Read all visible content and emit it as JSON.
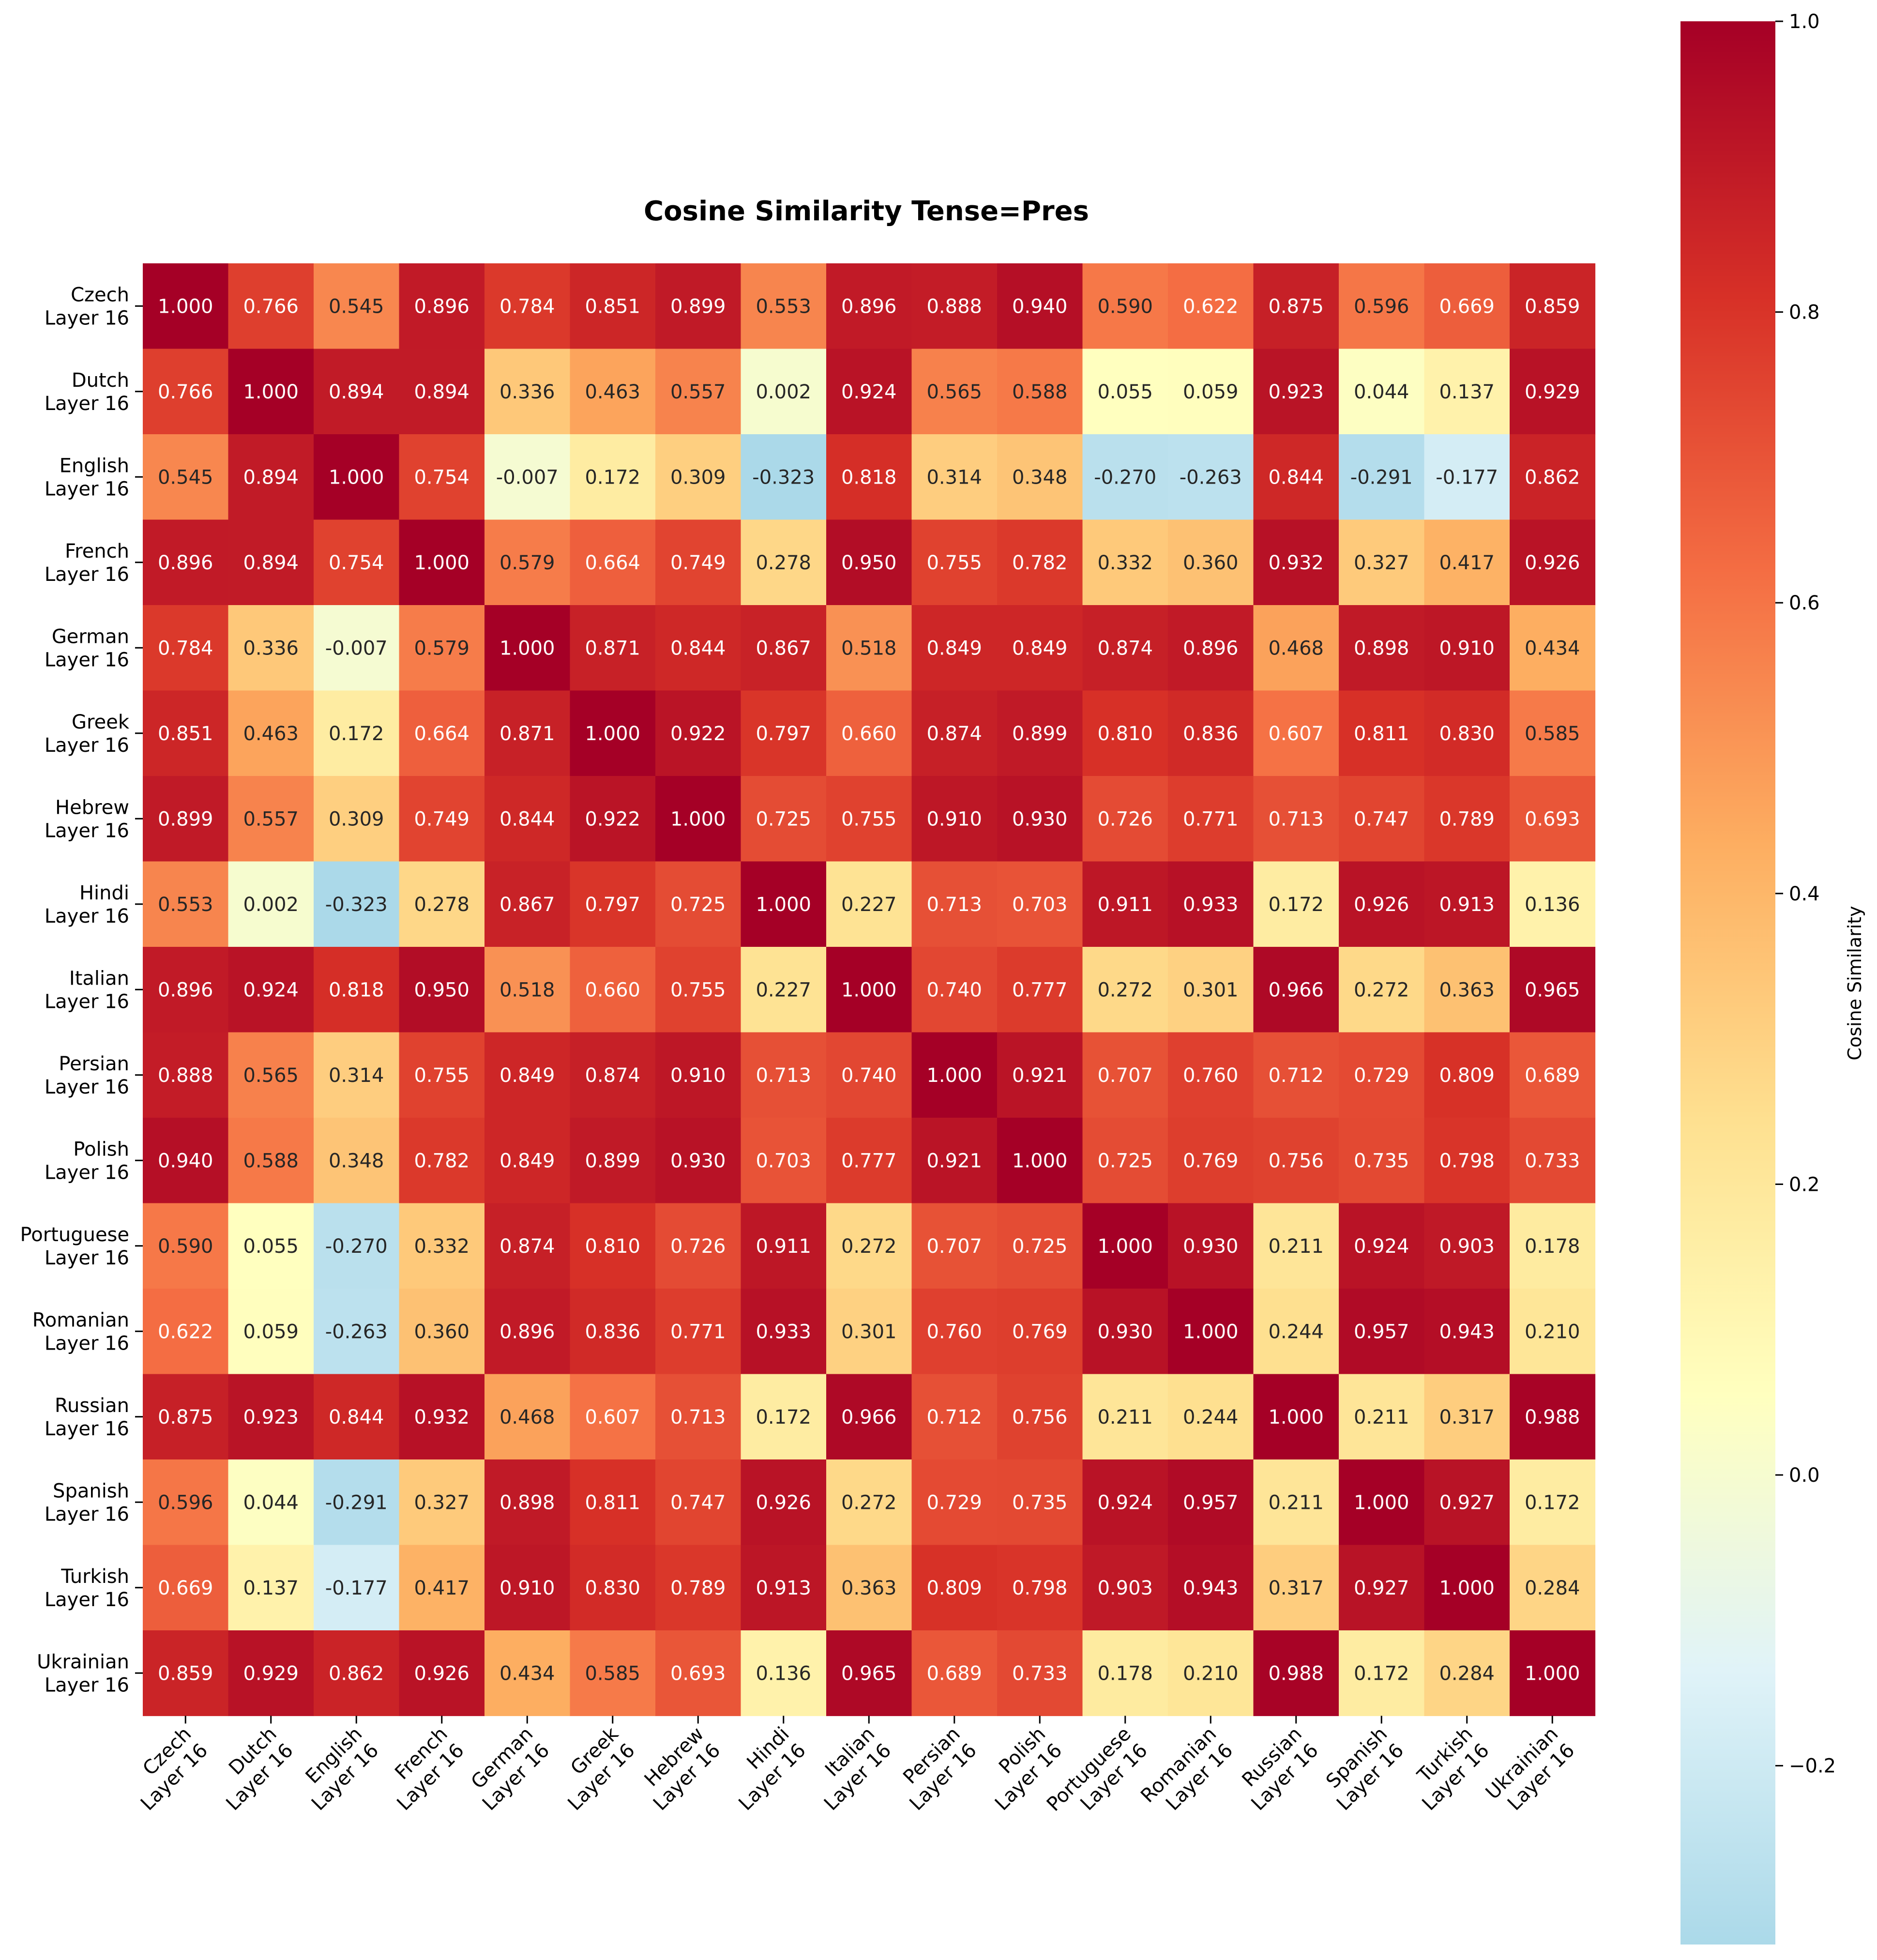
{
  "chart_data": {
    "type": "heatmap",
    "title": "Cosine Similarity Tense=Pres",
    "row_labels": [
      [
        "Czech",
        "Layer 16"
      ],
      [
        "Dutch",
        "Layer 16"
      ],
      [
        "English",
        "Layer 16"
      ],
      [
        "French",
        "Layer 16"
      ],
      [
        "German",
        "Layer 16"
      ],
      [
        "Greek",
        "Layer 16"
      ],
      [
        "Hebrew",
        "Layer 16"
      ],
      [
        "Hindi",
        "Layer 16"
      ],
      [
        "Italian",
        "Layer 16"
      ],
      [
        "Persian",
        "Layer 16"
      ],
      [
        "Polish",
        "Layer 16"
      ],
      [
        "Portuguese",
        "Layer 16"
      ],
      [
        "Romanian",
        "Layer 16"
      ],
      [
        "Russian",
        "Layer 16"
      ],
      [
        "Spanish",
        "Layer 16"
      ],
      [
        "Turkish",
        "Layer 16"
      ],
      [
        "Ukrainian",
        "Layer 16"
      ]
    ],
    "col_labels": [
      [
        "Czech",
        "Layer 16"
      ],
      [
        "Dutch",
        "Layer 16"
      ],
      [
        "English",
        "Layer 16"
      ],
      [
        "French",
        "Layer 16"
      ],
      [
        "German",
        "Layer 16"
      ],
      [
        "Greek",
        "Layer 16"
      ],
      [
        "Hebrew",
        "Layer 16"
      ],
      [
        "Hindi",
        "Layer 16"
      ],
      [
        "Italian",
        "Layer 16"
      ],
      [
        "Persian",
        "Layer 16"
      ],
      [
        "Polish",
        "Layer 16"
      ],
      [
        "Portuguese",
        "Layer 16"
      ],
      [
        "Romanian",
        "Layer 16"
      ],
      [
        "Russian",
        "Layer 16"
      ],
      [
        "Spanish",
        "Layer 16"
      ],
      [
        "Turkish",
        "Layer 16"
      ],
      [
        "Ukrainian",
        "Layer 16"
      ]
    ],
    "values": [
      [
        1.0,
        0.766,
        0.545,
        0.896,
        0.784,
        0.851,
        0.899,
        0.553,
        0.896,
        0.888,
        0.94,
        0.59,
        0.622,
        0.875,
        0.596,
        0.669,
        0.859
      ],
      [
        0.766,
        1.0,
        0.894,
        0.894,
        0.336,
        0.463,
        0.557,
        0.002,
        0.924,
        0.565,
        0.588,
        0.055,
        0.059,
        0.923,
        0.044,
        0.137,
        0.929
      ],
      [
        0.545,
        0.894,
        1.0,
        0.754,
        -0.007,
        0.172,
        0.309,
        -0.323,
        0.818,
        0.314,
        0.348,
        -0.27,
        -0.263,
        0.844,
        -0.291,
        -0.177,
        0.862
      ],
      [
        0.896,
        0.894,
        0.754,
        1.0,
        0.579,
        0.664,
        0.749,
        0.278,
        0.95,
        0.755,
        0.782,
        0.332,
        0.36,
        0.932,
        0.327,
        0.417,
        0.926
      ],
      [
        0.784,
        0.336,
        -0.007,
        0.579,
        1.0,
        0.871,
        0.844,
        0.867,
        0.518,
        0.849,
        0.849,
        0.874,
        0.896,
        0.468,
        0.898,
        0.91,
        0.434
      ],
      [
        0.851,
        0.463,
        0.172,
        0.664,
        0.871,
        1.0,
        0.922,
        0.797,
        0.66,
        0.874,
        0.899,
        0.81,
        0.836,
        0.607,
        0.811,
        0.83,
        0.585
      ],
      [
        0.899,
        0.557,
        0.309,
        0.749,
        0.844,
        0.922,
        1.0,
        0.725,
        0.755,
        0.91,
        0.93,
        0.726,
        0.771,
        0.713,
        0.747,
        0.789,
        0.693
      ],
      [
        0.553,
        0.002,
        -0.323,
        0.278,
        0.867,
        0.797,
        0.725,
        1.0,
        0.227,
        0.713,
        0.703,
        0.911,
        0.933,
        0.172,
        0.926,
        0.913,
        0.136
      ],
      [
        0.896,
        0.924,
        0.818,
        0.95,
        0.518,
        0.66,
        0.755,
        0.227,
        1.0,
        0.74,
        0.777,
        0.272,
        0.301,
        0.966,
        0.272,
        0.363,
        0.965
      ],
      [
        0.888,
        0.565,
        0.314,
        0.755,
        0.849,
        0.874,
        0.91,
        0.713,
        0.74,
        1.0,
        0.921,
        0.707,
        0.76,
        0.712,
        0.729,
        0.809,
        0.689
      ],
      [
        0.94,
        0.588,
        0.348,
        0.782,
        0.849,
        0.899,
        0.93,
        0.703,
        0.777,
        0.921,
        1.0,
        0.725,
        0.769,
        0.756,
        0.735,
        0.798,
        0.733
      ],
      [
        0.59,
        0.055,
        -0.27,
        0.332,
        0.874,
        0.81,
        0.726,
        0.911,
        0.272,
        0.707,
        0.725,
        1.0,
        0.93,
        0.211,
        0.924,
        0.903,
        0.178
      ],
      [
        0.622,
        0.059,
        -0.263,
        0.36,
        0.896,
        0.836,
        0.771,
        0.933,
        0.301,
        0.76,
        0.769,
        0.93,
        1.0,
        0.244,
        0.957,
        0.943,
        0.21
      ],
      [
        0.875,
        0.923,
        0.844,
        0.932,
        0.468,
        0.607,
        0.713,
        0.172,
        0.966,
        0.712,
        0.756,
        0.211,
        0.244,
        1.0,
        0.211,
        0.317,
        0.988
      ],
      [
        0.596,
        0.044,
        -0.291,
        0.327,
        0.898,
        0.811,
        0.747,
        0.926,
        0.272,
        0.729,
        0.735,
        0.924,
        0.957,
        0.211,
        1.0,
        0.927,
        0.172
      ],
      [
        0.669,
        0.137,
        -0.177,
        0.417,
        0.91,
        0.83,
        0.789,
        0.913,
        0.363,
        0.809,
        0.798,
        0.903,
        0.943,
        0.317,
        0.927,
        1.0,
        0.284
      ],
      [
        0.859,
        0.929,
        0.862,
        0.926,
        0.434,
        0.585,
        0.693,
        0.136,
        0.965,
        0.689,
        0.733,
        0.178,
        0.21,
        0.988,
        0.172,
        0.284,
        1.0
      ]
    ],
    "value_format": "3 decimals",
    "colormap": "RdYlBu_r",
    "colormap_stops": [
      "#a50026",
      "#d73027",
      "#f46d43",
      "#fdae61",
      "#fee090",
      "#ffffbf",
      "#e0f3f8",
      "#abd9e9"
    ],
    "color_range": [
      -0.323,
      1.0
    ],
    "colorbar": {
      "label": "Cosine Similarity",
      "ticks": [
        -0.2,
        0.0,
        0.2,
        0.4,
        0.6,
        0.8,
        1.0
      ],
      "tick_labels": [
        "−0.2",
        "0.0",
        "0.2",
        "0.4",
        "0.6",
        "0.8",
        "1.0"
      ]
    },
    "cell_text_colors": {
      "dark_cell": "#ffffff",
      "light_cell": "#262626"
    }
  }
}
